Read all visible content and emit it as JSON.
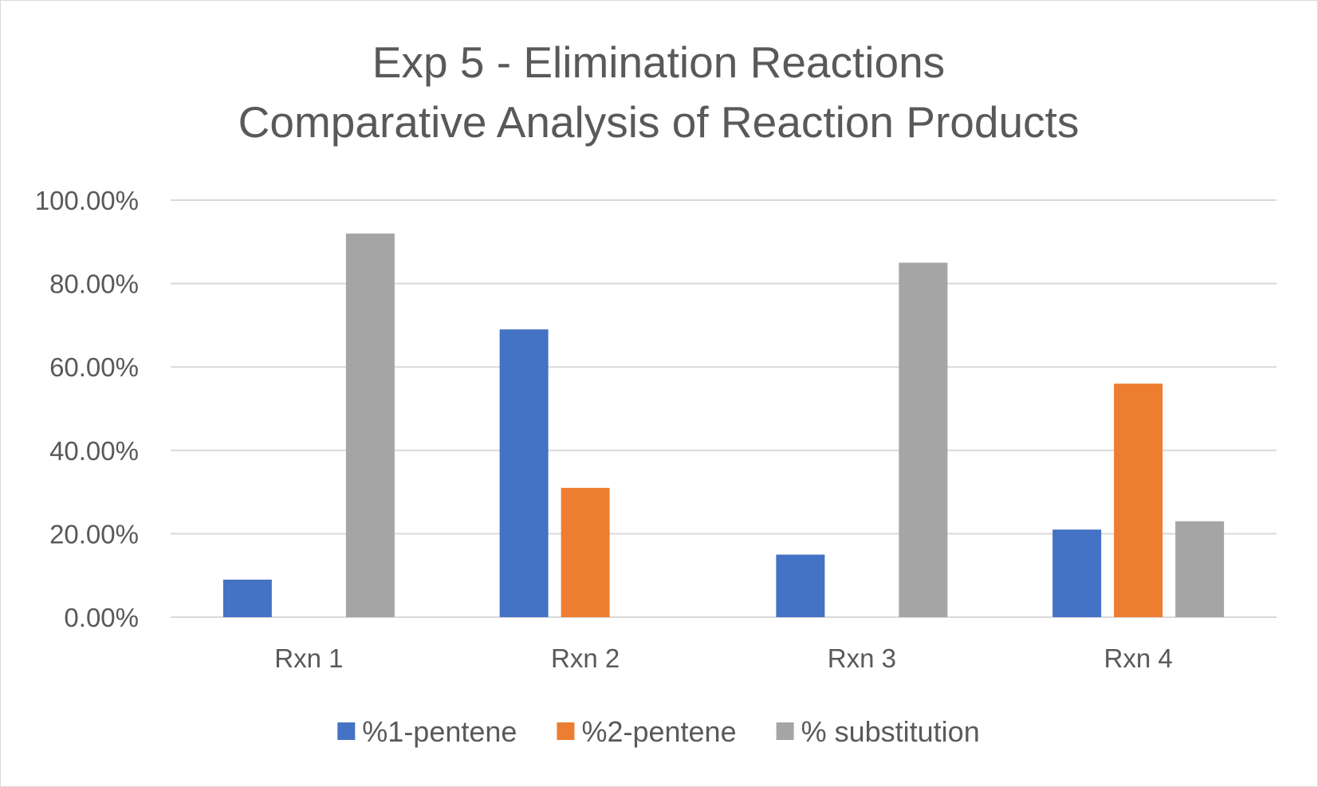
{
  "chart_data": {
    "type": "bar",
    "title": "Exp 5 - Elimination Reactions",
    "subtitle": "Comparative Analysis of Reaction Products",
    "categories": [
      "Rxn 1",
      "Rxn 2",
      "Rxn 3",
      "Rxn 4"
    ],
    "series": [
      {
        "name": "%1-pentene",
        "color": "#4472C4",
        "values": [
          0.09,
          0.69,
          0.15,
          0.21
        ]
      },
      {
        "name": "%2-pentene",
        "color": "#ED7D31",
        "values": [
          0.0,
          0.31,
          0.0,
          0.56
        ]
      },
      {
        "name": "% substitution",
        "color": "#A5A5A5",
        "values": [
          0.92,
          0.0,
          0.85,
          0.23
        ]
      }
    ],
    "ylim": [
      0,
      1
    ],
    "yticks": [
      {
        "value": 0.0,
        "label": "0.00%"
      },
      {
        "value": 0.2,
        "label": "20.00%"
      },
      {
        "value": 0.4,
        "label": "40.00%"
      },
      {
        "value": 0.6,
        "label": "60.00%"
      },
      {
        "value": 0.8,
        "label": "80.00%"
      },
      {
        "value": 1.0,
        "label": "100.00%"
      }
    ],
    "xlabel": "",
    "ylabel": "",
    "grid": true,
    "legend_position": "bottom",
    "gridline_color": "#d9d9d9",
    "text_color": "#595959"
  }
}
